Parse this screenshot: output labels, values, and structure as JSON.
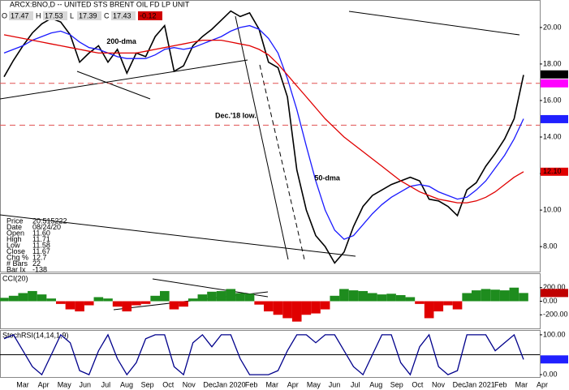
{
  "chart_data": [
    {
      "type": "line",
      "title": "ARCX:BNO,D -- UNITED STS BRENT OIL FD LP UNIT",
      "header_quote": [
        {
          "label": "O",
          "value": 17.47
        },
        {
          "label": "H",
          "value": 17.53
        },
        {
          "label": "L",
          "value": 17.39
        },
        {
          "label": "C",
          "value": 17.43
        },
        {
          "value": -0.12
        }
      ],
      "info_box": [
        [
          "Price",
          "20.515222"
        ],
        [
          "Date",
          "08/24/20"
        ],
        [
          "Open",
          "11.60"
        ],
        [
          "High",
          "11.71"
        ],
        [
          "Low",
          "11.58"
        ],
        [
          "Close",
          "11.67"
        ],
        [
          "Chg %",
          "12.7"
        ],
        [
          "# Bars",
          "22"
        ],
        [
          "Bar Ix",
          "-138"
        ]
      ],
      "ylim": [
        6.63,
        21.46
      ],
      "yticks": [
        {
          "value": 8,
          "label": "8.00"
        },
        {
          "value": 10,
          "label": "10.00"
        },
        {
          "value": 12,
          "label": "12.00"
        },
        {
          "value": 14,
          "label": "14.00"
        },
        {
          "value": 16,
          "label": "16.00"
        },
        {
          "value": 18,
          "label": "18.00"
        },
        {
          "value": 20,
          "label": "20.00"
        }
      ],
      "series": [
        {
          "color": "#000000",
          "values": [
            17.3,
            18.2,
            19.0,
            19.7,
            20.2,
            20.5,
            20.3,
            19.6,
            18.1,
            18.6,
            19.0,
            18.1,
            18.8,
            17.5,
            18.6,
            18.4,
            19.5,
            20.1,
            17.6,
            17.9,
            19.0,
            19.5,
            19.9,
            20.4,
            20.9,
            20.6,
            20.8,
            19.9,
            18.1,
            17.8,
            16.2,
            12.2,
            10.0,
            8.6,
            8.0,
            7.1,
            7.7,
            9.1,
            10.2,
            10.8,
            11.1,
            11.4,
            11.6,
            11.8,
            11.6,
            10.6,
            10.5,
            10.2,
            9.7,
            11.1,
            11.5,
            12.4,
            13.1,
            13.9,
            15.0,
            17.4
          ]
        },
        {
          "name": "50-dma",
          "color": "#1a1aff",
          "values": [
            18.6,
            18.8,
            19.0,
            19.3,
            19.5,
            19.7,
            19.8,
            19.6,
            19.2,
            18.9,
            18.8,
            18.6,
            18.4,
            18.3,
            18.3,
            18.3,
            18.5,
            18.8,
            18.9,
            18.8,
            18.9,
            19.1,
            19.3,
            19.5,
            19.8,
            20.0,
            20.1,
            19.9,
            19.4,
            18.6,
            17.2,
            15.5,
            13.5,
            11.6,
            10.0,
            8.9,
            8.4,
            8.6,
            9.2,
            9.8,
            10.3,
            10.7,
            11.0,
            11.3,
            11.4,
            11.3,
            11.0,
            10.8,
            10.6,
            10.7,
            11.1,
            11.6,
            12.3,
            13.0,
            13.9,
            15.0
          ]
        },
        {
          "name": "200-dma",
          "color": "#e00000",
          "values": [
            19.6,
            19.5,
            19.4,
            19.3,
            19.2,
            19.1,
            19.0,
            18.9,
            18.8,
            18.7,
            18.6,
            18.6,
            18.6,
            18.6,
            18.6,
            18.7,
            18.8,
            18.9,
            19.0,
            19.1,
            19.2,
            19.3,
            19.3,
            19.3,
            19.2,
            19.1,
            19.0,
            18.8,
            18.5,
            18.0,
            17.4,
            16.8,
            16.2,
            15.6,
            15.0,
            14.5,
            14.0,
            13.6,
            13.2,
            12.8,
            12.4,
            12.0,
            11.6,
            11.3,
            11.0,
            10.8,
            10.6,
            10.5,
            10.4,
            10.4,
            10.5,
            10.7,
            11.0,
            11.4,
            11.8,
            12.1
          ]
        }
      ],
      "reference_lines": [
        {
          "value": 16.94,
          "color": "#e05050"
        },
        {
          "value": 14.65,
          "label": "Dec.'18 low.",
          "color": "#e05050"
        }
      ],
      "last_value_tags": [
        {
          "value": 17.43,
          "color": "#000000"
        },
        {
          "value": 16.94,
          "color": "#ff00ff"
        },
        {
          "value": 14.98,
          "color": "#2020ff"
        },
        {
          "value": 12.1,
          "label": "12.10",
          "color": "#e00000"
        }
      ]
    },
    {
      "type": "bar",
      "title": "CCI(20)",
      "ylim": [
        -400,
        400
      ],
      "yticks": [
        {
          "value": 200,
          "label": "200.00"
        },
        {
          "value": 0,
          "label": "0.00"
        },
        {
          "value": -200,
          "label": "-200.00"
        }
      ],
      "positive_color": "#1e8c1e",
      "negative_color": "#e00000",
      "values": [
        50,
        80,
        120,
        150,
        100,
        40,
        -40,
        -120,
        -150,
        -60,
        60,
        40,
        -80,
        -150,
        -60,
        -40,
        80,
        150,
        -120,
        -80,
        40,
        100,
        140,
        150,
        180,
        120,
        110,
        -50,
        -150,
        -200,
        -250,
        -300,
        -200,
        -180,
        -120,
        80,
        180,
        160,
        150,
        120,
        100,
        110,
        90,
        60,
        -40,
        -250,
        -150,
        -60,
        -120,
        120,
        160,
        180,
        170,
        160,
        200,
        121
      ],
      "last_value_tags": [
        {
          "value": 121.02,
          "color": "#c00000"
        }
      ]
    },
    {
      "type": "line",
      "title": "StochRSI(14,14,1,9)",
      "ylim": [
        -6,
        110
      ],
      "yticks": [
        {
          "value": 100,
          "label": "100.00"
        },
        {
          "value": 0,
          "label": "0.00"
        }
      ],
      "series": [
        {
          "color": "#00008b",
          "values": [
            90,
            100,
            60,
            20,
            0,
            50,
            100,
            80,
            10,
            0,
            60,
            100,
            40,
            0,
            30,
            90,
            100,
            100,
            20,
            0,
            80,
            100,
            70,
            100,
            100,
            40,
            0,
            0,
            0,
            10,
            60,
            100,
            100,
            80,
            100,
            100,
            60,
            20,
            0,
            50,
            100,
            100,
            30,
            0,
            70,
            100,
            20,
            0,
            10,
            100,
            100,
            100,
            60,
            80,
            100,
            38
          ]
        }
      ],
      "reference_lines": [
        {
          "value": 50,
          "color": "#000000"
        }
      ],
      "last_value_tags": [
        {
          "value": 38.19,
          "color": "#2020ff"
        }
      ],
      "x_month_labels": [
        "Mar",
        "Apr",
        "May",
        "Jun",
        "Jul",
        "Aug",
        "Sep",
        "Oct",
        "Nov",
        "Dec",
        "Jan 2020",
        "Feb",
        "Mar",
        "Apr",
        "May",
        "Jun",
        "Jul",
        "Aug",
        "Sep",
        "Oct",
        "Nov",
        "Dec",
        "Jan 2021",
        "Feb",
        "Mar",
        "Apr"
      ]
    }
  ]
}
